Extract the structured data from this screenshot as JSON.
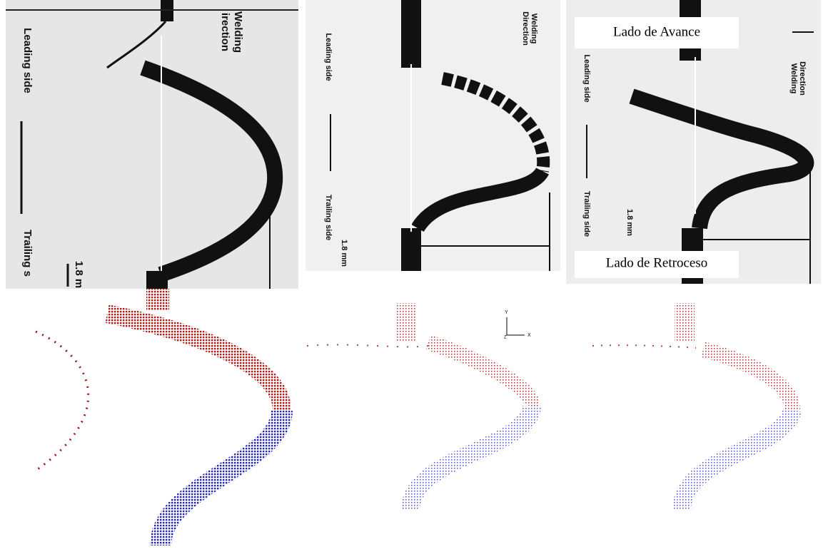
{
  "photos": [
    {
      "leading": "Leading side",
      "trailing": "Trailing s",
      "scale": "1.8 m",
      "direction": [
        "Welding",
        "irection"
      ]
    },
    {
      "leading": "Leading side",
      "trailing": "Trailing side",
      "scale": "1.8 mm",
      "direction": [
        "Welding",
        "Direction"
      ]
    },
    {
      "leading": "Leading side",
      "trailing": "Trailing side",
      "scale": "1.8 mm",
      "direction": [
        "Welding",
        "Direction"
      ],
      "captions": [
        "Lado de Avance",
        "Lado de Retroceso"
      ]
    }
  ],
  "simulation_axes": {
    "y": "Y",
    "x": "X",
    "z": "Z"
  }
}
